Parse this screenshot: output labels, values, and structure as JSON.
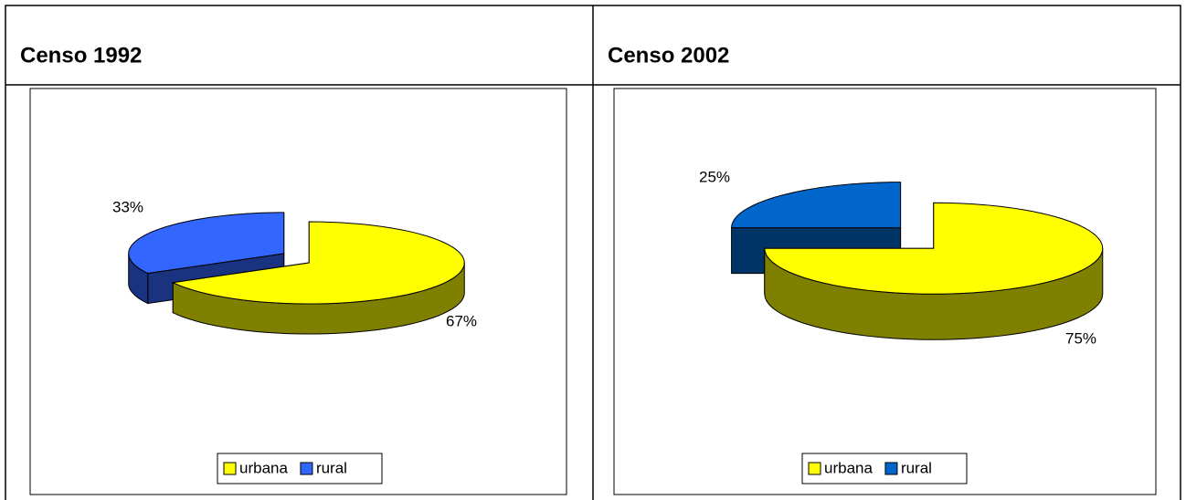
{
  "chart_data": [
    {
      "type": "pie",
      "title": "Censo 1992",
      "categories": [
        "urbana",
        "rural"
      ],
      "values": [
        67,
        33
      ],
      "value_labels": [
        "67%",
        "33%"
      ],
      "colors": [
        "#ffff00",
        "#3366ff"
      ],
      "legend": "bottom"
    },
    {
      "type": "pie",
      "title": "Censo 2002",
      "categories": [
        "urbana",
        "rural"
      ],
      "values": [
        75,
        25
      ],
      "value_labels": [
        "75%",
        "25%"
      ],
      "colors": [
        "#ffff00",
        "#0066cc"
      ],
      "legend": "bottom"
    }
  ]
}
